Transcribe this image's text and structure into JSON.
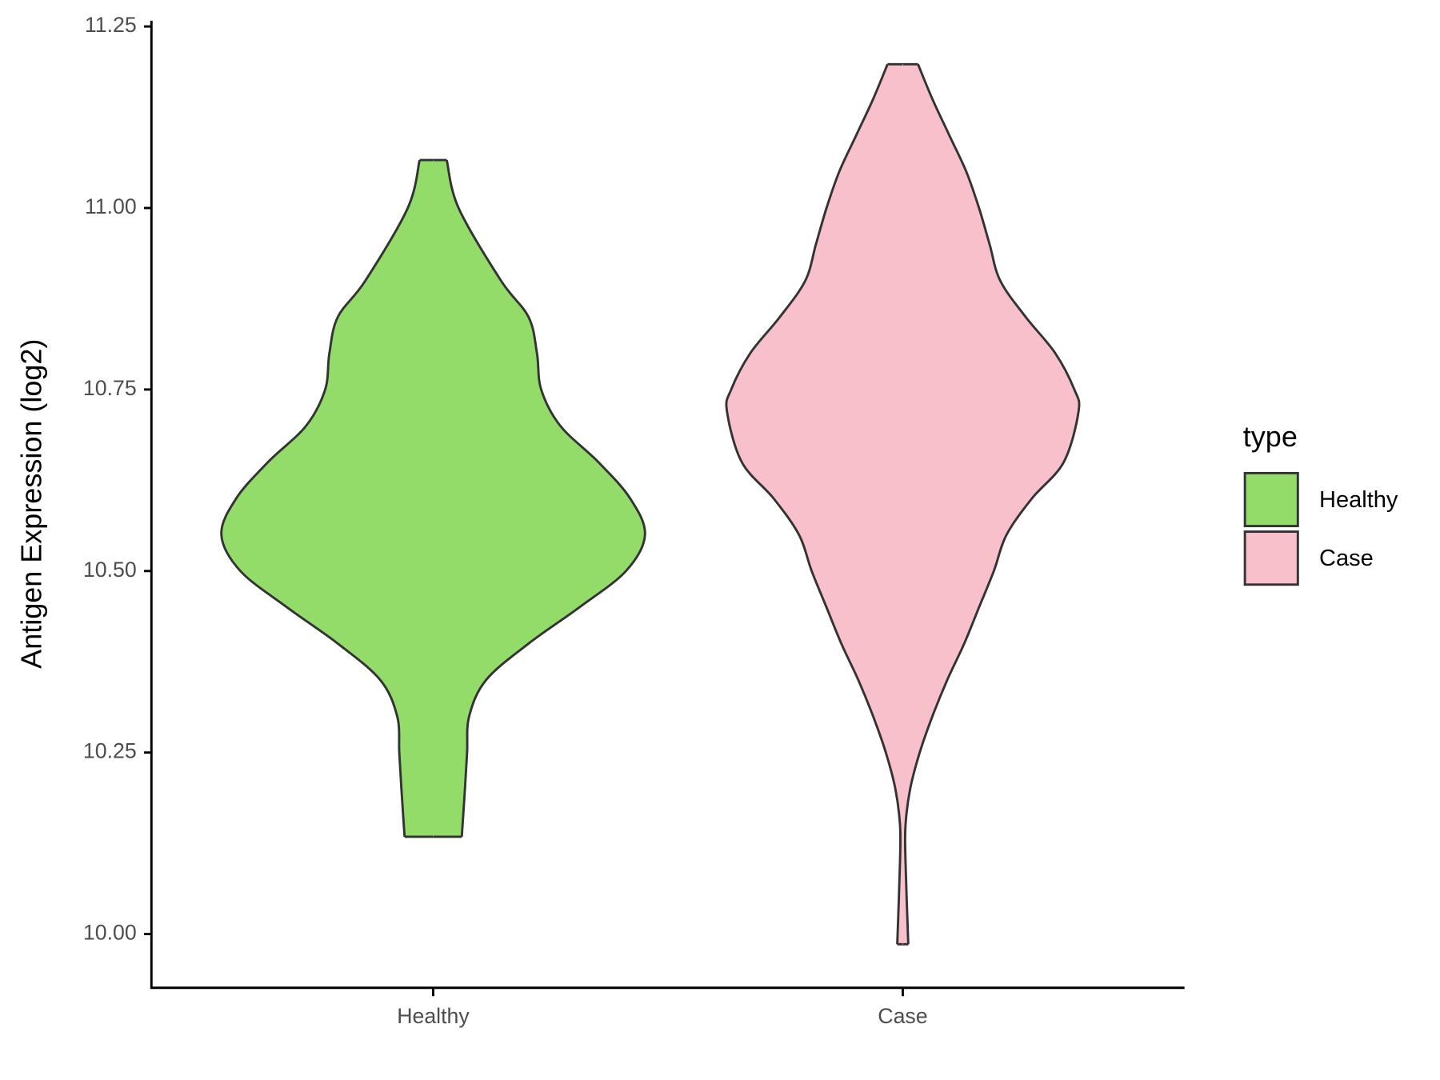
{
  "chart_data": {
    "type": "violin",
    "y_label": "Antigen Expression (log2)",
    "legend_title": "type",
    "categories": [
      "Healthy",
      "Case"
    ],
    "ylim": [
      9.926,
      11.258
    ],
    "yticks": [
      {
        "value": 10,
        "label": "10.00"
      },
      {
        "value": 10.25,
        "label": "10.25"
      },
      {
        "value": 10.5,
        "label": "10.50"
      },
      {
        "value": 10.75,
        "label": "10.75"
      },
      {
        "value": 11,
        "label": "11.00"
      },
      {
        "value": 11.25,
        "label": "11.25"
      }
    ],
    "series": [
      {
        "name": "Healthy",
        "color": "#93dc6a",
        "y": [
          11.066,
          11.0,
          10.9,
          10.85,
          10.8,
          10.75,
          10.7,
          10.65,
          10.6,
          10.55,
          10.5,
          10.45,
          10.4,
          10.35,
          10.3,
          10.25,
          10.2,
          10.134
        ],
        "density": [
          0.064,
          0.12,
          0.32,
          0.45,
          0.49,
          0.51,
          0.6,
          0.78,
          0.93,
          1.0,
          0.91,
          0.69,
          0.45,
          0.25,
          0.17,
          0.16,
          0.15,
          0.135
        ]
      },
      {
        "name": "Case",
        "color": "#f7c0cb",
        "y": [
          11.198,
          11.15,
          11.1,
          11.05,
          11.0,
          10.95,
          10.9,
          10.85,
          10.8,
          10.75,
          10.72,
          10.65,
          10.6,
          10.55,
          10.5,
          10.45,
          10.4,
          10.35,
          10.3,
          10.25,
          10.2,
          10.15,
          10.1,
          9.986
        ],
        "density": [
          0.072,
          0.14,
          0.22,
          0.3,
          0.36,
          0.41,
          0.46,
          0.58,
          0.72,
          0.81,
          0.83,
          0.76,
          0.61,
          0.49,
          0.43,
          0.36,
          0.29,
          0.21,
          0.14,
          0.08,
          0.035,
          0.013,
          0.013,
          0.026
        ]
      }
    ]
  }
}
